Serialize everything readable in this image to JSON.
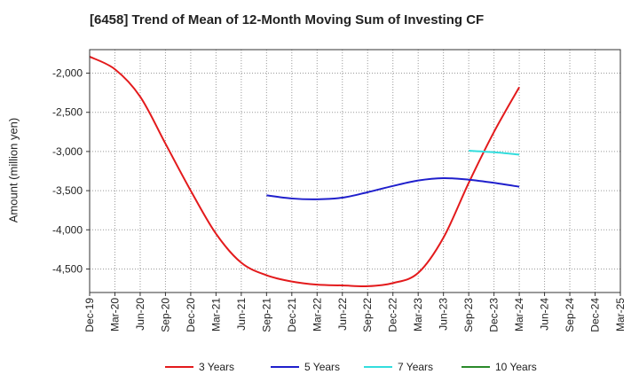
{
  "chart_data": {
    "type": "line",
    "title": "[6458]  Trend of Mean of 12-Month Moving Sum of Investing CF",
    "xlabel": "",
    "ylabel": "Amount (million yen)",
    "ylim": [
      -4800,
      -1700
    ],
    "yticks": [
      -2000,
      -2500,
      -3000,
      -3500,
      -4000,
      -4500
    ],
    "ytick_labels": [
      "-2,000",
      "-2,500",
      "-3,000",
      "-3,500",
      "-4,000",
      "-4,500"
    ],
    "categories": [
      "Dec-19",
      "Mar-20",
      "Jun-20",
      "Sep-20",
      "Dec-20",
      "Mar-21",
      "Jun-21",
      "Sep-21",
      "Dec-21",
      "Mar-22",
      "Jun-22",
      "Sep-22",
      "Dec-22",
      "Mar-23",
      "Jun-23",
      "Sep-23",
      "Dec-23",
      "Mar-24",
      "Jun-24",
      "Sep-24",
      "Dec-24",
      "Mar-25"
    ],
    "grid": true,
    "legend_position": "bottom",
    "series": [
      {
        "name": "3 Years",
        "color": "#e31a1c",
        "values": [
          -1790,
          -1950,
          -2300,
          -2900,
          -3500,
          -4050,
          -4420,
          -4580,
          -4660,
          -4700,
          -4710,
          -4720,
          -4680,
          -4550,
          -4100,
          -3400,
          -2750,
          -2180,
          null,
          null,
          null,
          null
        ]
      },
      {
        "name": "5 Years",
        "color": "#1f1fcc",
        "values": [
          null,
          null,
          null,
          null,
          null,
          null,
          null,
          -3560,
          -3600,
          -3610,
          -3590,
          -3520,
          -3440,
          -3370,
          -3340,
          -3360,
          -3400,
          -3450,
          null,
          null,
          null,
          null
        ]
      },
      {
        "name": "7 Years",
        "color": "#33dddd",
        "values": [
          null,
          null,
          null,
          null,
          null,
          null,
          null,
          null,
          null,
          null,
          null,
          null,
          null,
          null,
          null,
          -2990,
          -3010,
          -3040,
          null,
          null,
          null,
          null
        ]
      },
      {
        "name": "10 Years",
        "color": "#2a8a2a",
        "values": [
          null,
          null,
          null,
          null,
          null,
          null,
          null,
          null,
          null,
          null,
          null,
          null,
          null,
          null,
          null,
          null,
          null,
          null,
          null,
          null,
          null,
          null
        ]
      }
    ]
  }
}
